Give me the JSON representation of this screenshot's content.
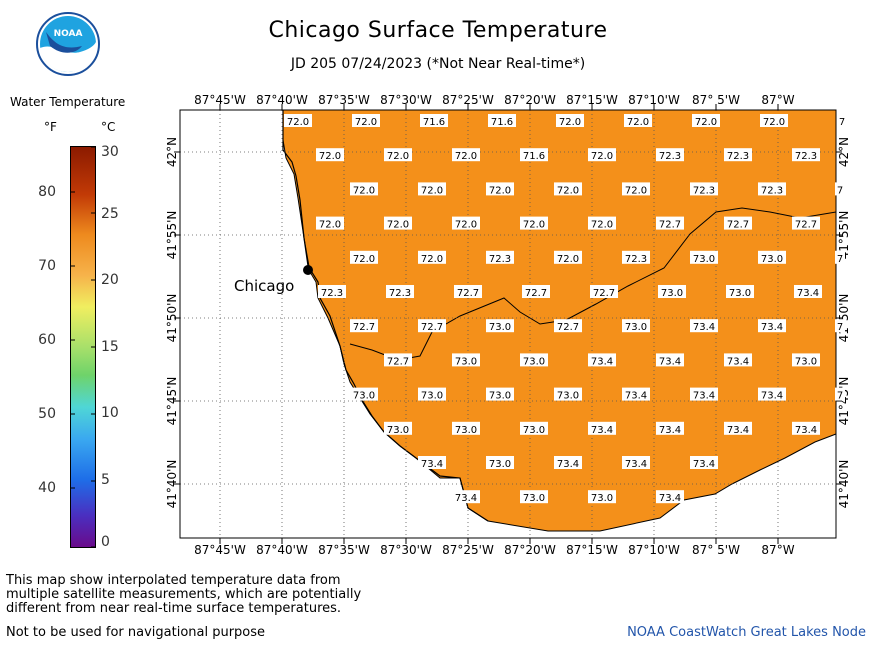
{
  "header": {
    "title": "Chicago Surface Temperature",
    "subtitle": "JD 205 07/24/2023 (*Not Near Real-time*)"
  },
  "logo": {
    "text": "NOAA",
    "icon": "noaa-logo-icon"
  },
  "legend": {
    "title": "Water Temperature",
    "unit_f": "°F",
    "unit_c": "°C",
    "f_ticks": [
      "80",
      "70",
      "60",
      "50",
      "40"
    ],
    "c_ticks": [
      "30",
      "25",
      "20",
      "15",
      "10",
      "5",
      "0"
    ],
    "colors": {
      "max": "#8b1a00",
      "orange": "#ee8a1e",
      "yellow": "#f0ee60",
      "green": "#6fd36a",
      "cyan": "#4fd6d6",
      "blue": "#1e6ee8",
      "min": "#6a0a8a"
    }
  },
  "map": {
    "top_labels": [
      "87°45'W",
      "87°40'W",
      "87°35'W",
      "87°30'W",
      "87°25'W",
      "87°20'W",
      "87°15'W",
      "87°10'W",
      "87° 5'W",
      "87°W"
    ],
    "bottom_labels": [
      "87°45'W",
      "87°40'W",
      "87°35'W",
      "87°30'W",
      "87°25'W",
      "87°20'W",
      "87°15'W",
      "87°10'W",
      "87° 5'W",
      "87°W"
    ],
    "left_labels": [
      "42°N",
      "41°55'N",
      "41°50'N",
      "41°45'N",
      "41°40'N"
    ],
    "right_labels": [
      "42°N",
      "41°55'N",
      "41°50'N",
      "41°45'N",
      "41°40'N"
    ],
    "city_label": "Chicago",
    "water_color": "#f4901a",
    "land_color": "#ffffff",
    "temperature_rows": [
      [
        "72.0",
        "72.0",
        "71.6",
        "71.6",
        "72.0",
        "72.0",
        "72.0",
        "72.0",
        "7"
      ],
      [
        "72.0",
        "72.0",
        "72.0",
        "71.6",
        "72.0",
        "72.3",
        "72.3",
        "72.3"
      ],
      [
        "72.0",
        "72.0",
        "72.0",
        "72.0",
        "72.0",
        "72.3",
        "72.3",
        "7"
      ],
      [
        "72.0",
        "72.0",
        "72.0",
        "72.0",
        "72.0",
        "72.7",
        "72.7",
        "72.7"
      ],
      [
        "72.0",
        "72.0",
        "72.3",
        "72.0",
        "72.3",
        "73.0",
        "73.0",
        "7"
      ],
      [
        "72.3",
        "72.3",
        "72.7",
        "72.7",
        "72.7",
        "73.0",
        "73.0",
        "73.4"
      ],
      [
        "72.7",
        "72.7",
        "73.0",
        "72.7",
        "73.0",
        "73.4",
        "73.4",
        "7"
      ],
      [
        "72.7",
        "73.0",
        "73.0",
        "73.4",
        "73.4",
        "73.4",
        "73.0"
      ],
      [
        "73.0",
        "73.0",
        "73.0",
        "73.0",
        "73.4",
        "73.4",
        "73.4",
        "7"
      ],
      [
        "73.0",
        "73.0",
        "73.0",
        "73.4",
        "73.4",
        "73.4",
        "73.4"
      ],
      [
        "73.4",
        "73.0",
        "73.4",
        "73.4",
        "73.4"
      ],
      [
        "73.4",
        "73.0",
        "73.0",
        "73.4"
      ]
    ]
  },
  "footer": {
    "note_lines": [
      "This map show interpolated temperature data from",
      "multiple satellite measurements, which are potentially",
      "different from near real-time surface temperatures."
    ],
    "nav_note": "Not to be used for navigational purpose",
    "credit": "NOAA CoastWatch Great Lakes Node"
  }
}
